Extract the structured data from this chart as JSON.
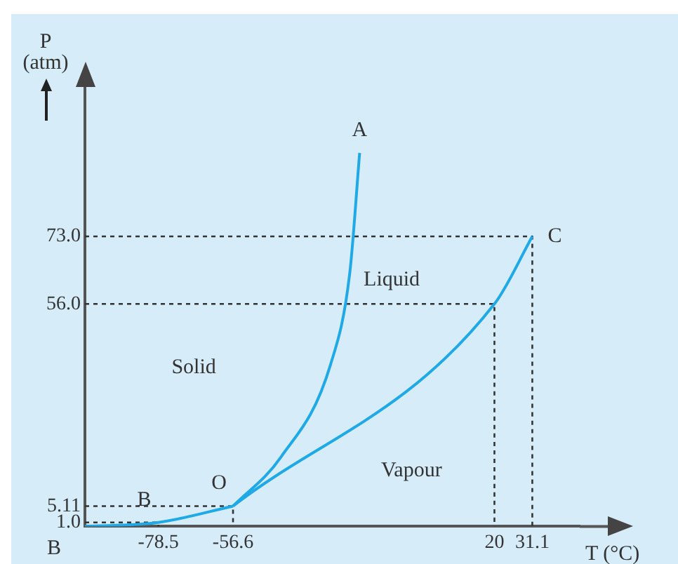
{
  "chart_data": {
    "type": "line",
    "xlabel": "T (°C)",
    "ylabel": "P (atm)",
    "xlim": [
      -100,
      45
    ],
    "ylim": [
      0,
      100
    ],
    "xticks": [
      -78.5,
      -56.6,
      20,
      31.1
    ],
    "yticks": [
      {
        "value": 1,
        "label": "1.0"
      },
      {
        "value": 5.11,
        "label": "5.11"
      },
      {
        "value": 56,
        "label": "56.0"
      },
      {
        "value": 73,
        "label": "73.0"
      }
    ],
    "series": [
      {
        "color": "#1fa9e6",
        "x": [
          -100,
          -78.5,
          -56.6
        ],
        "values": [
          0,
          1,
          5.11
        ]
      },
      {
        "color": "#1fa9e6",
        "x": [
          -56.6,
          -42.6,
          -28,
          -22.4,
          -19.5
        ],
        "values": [
          5.11,
          17.4,
          40.8,
          63.7,
          94
        ]
      },
      {
        "color": "#1fa9e6",
        "x": [
          -56.6,
          20,
          31.1
        ],
        "values": [
          5.11,
          56,
          73
        ]
      },
      {
        "color": "#333333",
        "line_style": "dotted",
        "x": [
          -100,
          -78.5,
          -78.5
        ],
        "values": [
          1,
          1,
          0
        ]
      },
      {
        "color": "#333333",
        "line_style": "dotted",
        "x": [
          -100,
          -56.6,
          -56.6
        ],
        "values": [
          5.11,
          5.11,
          0
        ]
      },
      {
        "color": "#333333",
        "line_style": "dotted",
        "x": [
          -100,
          20,
          20
        ],
        "values": [
          56,
          56,
          0
        ]
      },
      {
        "color": "#333333",
        "line_style": "dotted",
        "x": [
          -100,
          31.1,
          31.1
        ],
        "values": [
          73,
          73,
          0
        ]
      }
    ],
    "annotations": [
      {
        "text": "A",
        "x": -19.5,
        "y": 94
      },
      {
        "text": "C",
        "x": 31.1,
        "y": 73
      },
      {
        "text": "O",
        "x": -56.6,
        "y": 5.11
      },
      {
        "text": "B",
        "x": -78.5,
        "y": 1
      },
      {
        "text": "B",
        "x": -100,
        "y": 0
      },
      "Solid",
      "Liquid",
      "Vapour"
    ],
    "grid": false,
    "legend": false,
    "marker": "none",
    "line_style": "solid"
  }
}
